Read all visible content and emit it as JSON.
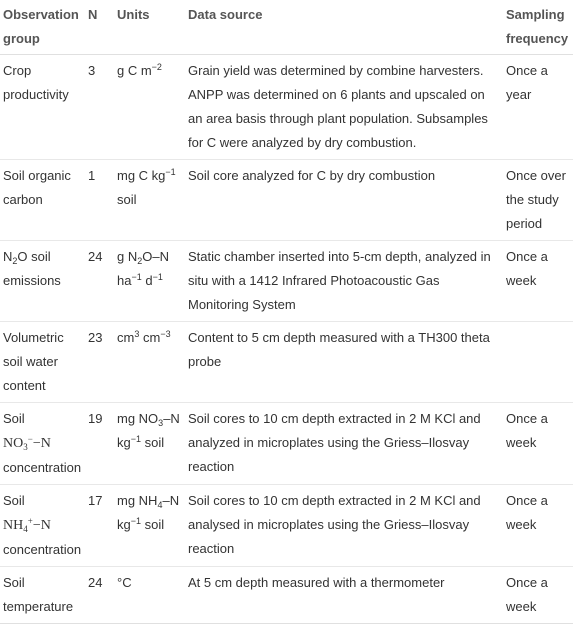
{
  "headers": {
    "observation_group": "Observation group",
    "n": "N",
    "units": "Units",
    "data_source": "Data source",
    "sampling_frequency": "Sampling frequency"
  },
  "rows": [
    {
      "group": "Crop productivity",
      "n": "3",
      "units": {
        "a": "g C m",
        "a_sup": "−2"
      },
      "source": "Grain yield was determined by combine harvesters. ANPP was determined on 6 plants and upscaled on an area basis through plant population. Subsamples for C were analyzed by dry combustion.",
      "frequency": "Once a year"
    },
    {
      "group": "Soil organic carbon",
      "n": "1",
      "units": {
        "a": "mg C kg",
        "a_sup": "−1",
        "b": " soil"
      },
      "source": "Soil core analyzed for C by dry combustion",
      "frequency": "Once over the study period"
    },
    {
      "group_pre": "N",
      "group_sub": "2",
      "group_post": "O soil emissions",
      "n": "24",
      "units": {
        "a": "g N",
        "a_sub": "2",
        "b": "O–N ha",
        "b_sup": "−1",
        "c": " d",
        "c_sup": "−1"
      },
      "source": "Static chamber inserted into 5-cm depth, analyzed in situ with a 1412 Infrared Photoacoustic Gas Monitoring System",
      "frequency": "Once a week"
    },
    {
      "group": "Volumetric soil water content",
      "n": "23",
      "units": {
        "a": "cm",
        "a_sup": "3",
        "b": " cm",
        "b_sup": "−3"
      },
      "source": "Content to 5 cm depth measured with a TH300 theta probe",
      "frequency": ""
    },
    {
      "group_pre": "Soil",
      "group_chem": "NO",
      "group_chem_sub": "3",
      "group_chem_sup": "−",
      "group_chem_post": "−N",
      "group_post": "concentration",
      "n": "19",
      "units": {
        "a": "mg NO",
        "a_sub": "3",
        "b": "–N kg",
        "b_sup": "−1",
        "c": " soil"
      },
      "source": "Soil cores to 10 cm depth extracted in 2 M KCl and analyzed in microplates using the Griess–Ilosvay reaction",
      "frequency": "Once a week"
    },
    {
      "group_pre": "Soil",
      "group_chem": "NH",
      "group_chem_sub": "4",
      "group_chem_sup": "+",
      "group_chem_post": "−N",
      "group_post": "concentration",
      "n": "17",
      "units": {
        "a": "mg NH",
        "a_sub": "4",
        "b": "–N kg",
        "b_sup": "−1",
        "c": " soil"
      },
      "source": "Soil cores to 10 cm depth extracted in 2 M KCl and analysed in microplates using the Griess–Ilosvay reaction",
      "frequency": "Once a week"
    },
    {
      "group": "Soil temperature",
      "n": "24",
      "units": {
        "a": "°C"
      },
      "source": "At 5 cm depth measured with a thermometer",
      "frequency": "Once a week"
    }
  ]
}
